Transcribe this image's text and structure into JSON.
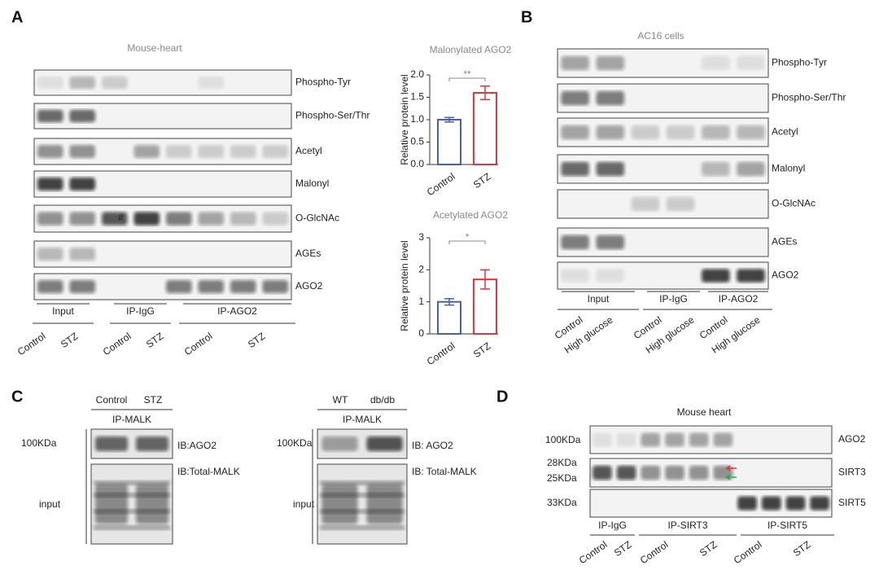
{
  "panels": {
    "A": {
      "letter": "A",
      "title": "Mouse-heart",
      "blots": [
        "Phospho-Tyr",
        "Phospho-Ser/Thr",
        "Acetyl",
        "Malonyl",
        "O-GlcNAc",
        "AGEs",
        "AGO2"
      ],
      "marker": "#",
      "groups": [
        "Input",
        "IP-IgG",
        "IP-AGO2"
      ],
      "lanes": [
        "Control",
        "STZ",
        "Control",
        "STZ",
        "Control",
        "STZ"
      ]
    },
    "B": {
      "letter": "B",
      "title": "AC16 cells",
      "blots": [
        "Phospho-Tyr",
        "Phospho-Ser/Thr",
        "Acetyl",
        "Malonyl",
        "O-GlcNAc",
        "AGEs",
        "AGO2"
      ],
      "groups": [
        "Input",
        "IP-IgG",
        "IP-AGO2"
      ],
      "lanes": [
        "Control",
        "High glucose",
        "Control",
        "High glucose",
        "Control",
        "High glucose"
      ]
    },
    "C": {
      "letter": "C",
      "left": {
        "lanes": [
          "Control",
          "STZ"
        ],
        "ip": "IP-MALK",
        "size": "100KDa",
        "ib": "IB:AGO2",
        "input": "input",
        "ib_input": "IB:Total-MALK"
      },
      "right": {
        "lanes": [
          "WT",
          "db/db"
        ],
        "ip": "IP-MALK",
        "size": "100KDa",
        "ib": "IB: AGO2",
        "input": "input",
        "ib_input": "IB: Total-MALK"
      }
    },
    "D": {
      "letter": "D",
      "title": "Mouse heart",
      "blots": [
        "AGO2",
        "SIRT3",
        "SIRT5"
      ],
      "sizes": [
        "100KDa",
        "28KDa",
        "25KDa",
        "33KDa"
      ],
      "groups": [
        "IP-IgG",
        "IP-SIRT3",
        "IP-SIRT5"
      ],
      "lanes": [
        "Control",
        "STZ",
        "Control",
        "STZ",
        "Control",
        "STZ"
      ]
    }
  },
  "chart_data": [
    {
      "type": "bar",
      "title": "Malonylated AGO2",
      "y_label": "Relative protein level",
      "categories": [
        "Control",
        "STZ"
      ],
      "values": [
        1.0,
        1.6
      ],
      "errors": [
        0.05,
        0.15
      ],
      "colors": [
        "#4a5fb0",
        "#e8323c"
      ],
      "significance": "**",
      "ylim": [
        0,
        2
      ],
      "yticks": [
        {
          "value": 0,
          "label": "0.0"
        },
        {
          "value": 0.5,
          "label": "0.5"
        },
        {
          "value": 1,
          "label": "1.0"
        },
        {
          "value": 1.5,
          "label": "1.5"
        },
        {
          "value": 2,
          "label": "2.0"
        }
      ]
    },
    {
      "type": "bar",
      "title": "Acetylated AGO2",
      "y_label": "Relative protein level",
      "categories": [
        "Control",
        "STZ"
      ],
      "values": [
        1.0,
        1.7
      ],
      "errors": [
        0.1,
        0.3
      ],
      "colors": [
        "#4a5fb0",
        "#e8323c"
      ],
      "significance": "*",
      "ylim": [
        0,
        3
      ],
      "yticks": [
        0,
        1,
        2,
        3
      ]
    }
  ]
}
